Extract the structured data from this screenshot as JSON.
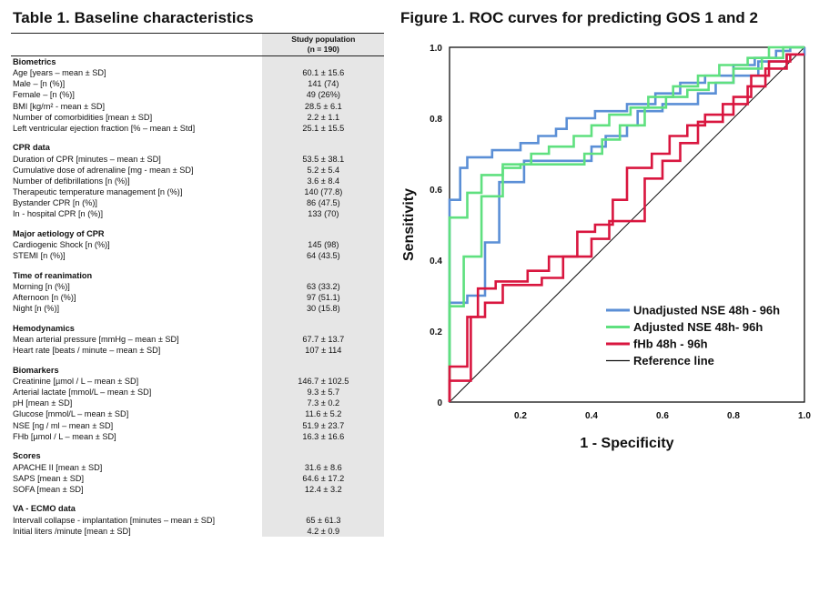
{
  "table": {
    "title": "Table 1. Baseline characteristics",
    "column_header_line1": "Study population",
    "column_header_line2": "(n = 190)",
    "sections": [
      {
        "heading": "Biometrics",
        "rows": [
          {
            "label": "Age [years – mean ± SD]",
            "value": "60.1 ± 15.6"
          },
          {
            "label": "Male – [n (%)]",
            "value": "141 (74)"
          },
          {
            "label": "Female – [n (%)]",
            "value": "49 (26%)"
          },
          {
            "label": "BMI [kg/m² - mean ± SD]",
            "value": "28.5 ± 6.1"
          },
          {
            "label": "Number of comorbidities [mean ± SD]",
            "value": "2.2 ± 1.1"
          },
          {
            "label": "Left ventricular ejection fraction [% – mean ± Std]",
            "value": "25.1 ± 15.5"
          }
        ]
      },
      {
        "heading": "CPR data",
        "rows": [
          {
            "label": "Duration of CPR [minutes – mean ± SD]",
            "value": "53.5 ± 38.1"
          },
          {
            "label": "Cumulative dose of adrenaline [mg - mean ± SD]",
            "value": "5.2 ± 5.4"
          },
          {
            "label": "Number of defibrillations [n (%)]",
            "value": "3.6 ± 8.4"
          },
          {
            "label": "Therapeutic temperature management [n (%)]",
            "value": "140 (77.8)"
          },
          {
            "label": "Bystander CPR [n (%)]",
            "value": "86 (47.5)"
          },
          {
            "label": "In - hospital CPR [n (%)]",
            "value": "133 (70)"
          }
        ]
      },
      {
        "heading": "Major aetiology of CPR",
        "rows": [
          {
            "label": "Cardiogenic Shock [n (%)]",
            "value": "145 (98)"
          },
          {
            "label": "STEMI [n (%)]",
            "value": "64 (43.5)"
          }
        ]
      },
      {
        "heading": "Time of reanimation",
        "rows": [
          {
            "label": "Morning [n (%)]",
            "value": "63 (33.2)"
          },
          {
            "label": "Afternoon [n (%)]",
            "value": "97 (51.1)"
          },
          {
            "label": "Night [n (%)]",
            "value": "30 (15.8)"
          }
        ]
      },
      {
        "heading": "Hemodynamics",
        "rows": [
          {
            "label": "Mean arterial pressure [mmHg – mean ± SD]",
            "value": "67.7 ± 13.7"
          },
          {
            "label": "Heart rate [beats / minute – mean ± SD]",
            "value": "107 ± 114"
          }
        ]
      },
      {
        "heading": "Biomarkers",
        "rows": [
          {
            "label": "Creatinine [µmol / L – mean ± SD]",
            "value": "146.7 ± 102.5"
          },
          {
            "label": "Arterial lactate [mmol/L – mean ± SD]",
            "value": "9.3 ± 5.7"
          },
          {
            "label": "pH [mean ± SD]",
            "value": "7.3 ± 0.2"
          },
          {
            "label": "Glucose [mmol/L – mean ± SD]",
            "value": "11.6 ± 5.2"
          },
          {
            "label": "NSE [ng / ml – mean ± SD]",
            "value": "51.9 ± 23.7"
          },
          {
            "label": "FHb [µmol / L – mean ± SD]",
            "value": "16.3 ± 16.6"
          }
        ]
      },
      {
        "heading": "Scores",
        "rows": [
          {
            "label": "APACHE II [mean ± SD]",
            "value": "31.6 ± 8.6"
          },
          {
            "label": "SAPS [mean ± SD]",
            "value": "64.6 ± 17.2"
          },
          {
            "label": "SOFA [mean ± SD]",
            "value": "12.4 ± 3.2"
          }
        ]
      },
      {
        "heading": "VA - ECMO data",
        "rows": [
          {
            "label": "Intervall collapse - implantation [minutes – mean ± SD]",
            "value": "65 ± 61.3"
          },
          {
            "label": "Initial liters /minute [mean ± SD]",
            "value": "4.2 ± 0.9"
          }
        ]
      }
    ]
  },
  "figure": {
    "title": "Figure 1. ROC curves for predicting GOS 1 and 2"
  },
  "chart_data": {
    "type": "line",
    "title": "Figure 1. ROC curves for predicting GOS 1 and 2",
    "xlabel": "1 - Specificity",
    "ylabel": "Sensitivity",
    "xlim": [
      0,
      1
    ],
    "ylim": [
      0,
      1
    ],
    "x_ticks": [
      "0.2",
      "0.4",
      "0.6",
      "0.8",
      "1.0"
    ],
    "y_ticks": [
      "0",
      "0.2",
      "0.4",
      "0.6",
      "0.8",
      "1.0"
    ],
    "grid": false,
    "legend_position": "bottom-right",
    "series": [
      {
        "name": "Unadjusted NSE 48h - 96h",
        "color": "#5b8fd6",
        "points": [
          [
            0,
            0
          ],
          [
            0,
            0.57
          ],
          [
            0.03,
            0.57
          ],
          [
            0.03,
            0.66
          ],
          [
            0.05,
            0.66
          ],
          [
            0.05,
            0.69
          ],
          [
            0.12,
            0.69
          ],
          [
            0.12,
            0.71
          ],
          [
            0.2,
            0.71
          ],
          [
            0.2,
            0.73
          ],
          [
            0.25,
            0.73
          ],
          [
            0.25,
            0.75
          ],
          [
            0.3,
            0.75
          ],
          [
            0.3,
            0.77
          ],
          [
            0.33,
            0.77
          ],
          [
            0.33,
            0.8
          ],
          [
            0.41,
            0.8
          ],
          [
            0.41,
            0.82
          ],
          [
            0.5,
            0.82
          ],
          [
            0.5,
            0.84
          ],
          [
            0.58,
            0.84
          ],
          [
            0.58,
            0.87
          ],
          [
            0.65,
            0.87
          ],
          [
            0.65,
            0.9
          ],
          [
            0.72,
            0.9
          ],
          [
            0.72,
            0.92
          ],
          [
            0.8,
            0.92
          ],
          [
            0.8,
            0.95
          ],
          [
            0.86,
            0.95
          ],
          [
            0.86,
            0.97
          ],
          [
            0.92,
            0.97
          ],
          [
            0.92,
            0.99
          ],
          [
            0.96,
            0.99
          ],
          [
            0.96,
            1
          ],
          [
            1,
            1
          ]
        ]
      },
      {
        "name": "Unadjusted NSE 48h - 96h",
        "color": "#5b8fd6",
        "points": [
          [
            0,
            0
          ],
          [
            0,
            0.28
          ],
          [
            0.05,
            0.28
          ],
          [
            0.05,
            0.3
          ],
          [
            0.1,
            0.3
          ],
          [
            0.1,
            0.45
          ],
          [
            0.14,
            0.45
          ],
          [
            0.14,
            0.62
          ],
          [
            0.21,
            0.62
          ],
          [
            0.21,
            0.68
          ],
          [
            0.4,
            0.68
          ],
          [
            0.4,
            0.72
          ],
          [
            0.44,
            0.72
          ],
          [
            0.44,
            0.75
          ],
          [
            0.5,
            0.75
          ],
          [
            0.5,
            0.78
          ],
          [
            0.53,
            0.78
          ],
          [
            0.53,
            0.82
          ],
          [
            0.6,
            0.82
          ],
          [
            0.6,
            0.84
          ],
          [
            0.7,
            0.84
          ],
          [
            0.7,
            0.87
          ],
          [
            0.75,
            0.87
          ],
          [
            0.75,
            0.9
          ],
          [
            0.8,
            0.9
          ],
          [
            0.8,
            0.92
          ],
          [
            0.87,
            0.92
          ],
          [
            0.87,
            0.96
          ],
          [
            0.95,
            0.96
          ],
          [
            0.95,
            0.98
          ],
          [
            1,
            0.98
          ],
          [
            1,
            1
          ]
        ]
      },
      {
        "name": "Adjusted NSE 48h- 96h",
        "color": "#5fe07f",
        "points": [
          [
            0,
            0
          ],
          [
            0,
            0.52
          ],
          [
            0.05,
            0.52
          ],
          [
            0.05,
            0.59
          ],
          [
            0.09,
            0.59
          ],
          [
            0.09,
            0.64
          ],
          [
            0.15,
            0.64
          ],
          [
            0.15,
            0.67
          ],
          [
            0.23,
            0.67
          ],
          [
            0.23,
            0.7
          ],
          [
            0.28,
            0.7
          ],
          [
            0.28,
            0.72
          ],
          [
            0.35,
            0.72
          ],
          [
            0.35,
            0.75
          ],
          [
            0.4,
            0.75
          ],
          [
            0.4,
            0.78
          ],
          [
            0.45,
            0.78
          ],
          [
            0.45,
            0.81
          ],
          [
            0.51,
            0.81
          ],
          [
            0.51,
            0.83
          ],
          [
            0.56,
            0.83
          ],
          [
            0.56,
            0.86
          ],
          [
            0.63,
            0.86
          ],
          [
            0.63,
            0.89
          ],
          [
            0.7,
            0.89
          ],
          [
            0.7,
            0.92
          ],
          [
            0.76,
            0.92
          ],
          [
            0.76,
            0.95
          ],
          [
            0.84,
            0.95
          ],
          [
            0.84,
            0.97
          ],
          [
            0.9,
            0.97
          ],
          [
            0.9,
            1
          ],
          [
            1,
            1
          ]
        ]
      },
      {
        "name": "Adjusted NSE 48h- 96h",
        "color": "#5fe07f",
        "points": [
          [
            0,
            0
          ],
          [
            0,
            0.27
          ],
          [
            0.04,
            0.27
          ],
          [
            0.04,
            0.41
          ],
          [
            0.09,
            0.41
          ],
          [
            0.09,
            0.58
          ],
          [
            0.15,
            0.58
          ],
          [
            0.15,
            0.66
          ],
          [
            0.2,
            0.66
          ],
          [
            0.2,
            0.67
          ],
          [
            0.38,
            0.67
          ],
          [
            0.38,
            0.7
          ],
          [
            0.43,
            0.7
          ],
          [
            0.43,
            0.74
          ],
          [
            0.48,
            0.74
          ],
          [
            0.48,
            0.78
          ],
          [
            0.55,
            0.78
          ],
          [
            0.55,
            0.83
          ],
          [
            0.61,
            0.83
          ],
          [
            0.61,
            0.86
          ],
          [
            0.67,
            0.86
          ],
          [
            0.67,
            0.88
          ],
          [
            0.73,
            0.88
          ],
          [
            0.73,
            0.9
          ],
          [
            0.8,
            0.9
          ],
          [
            0.8,
            0.94
          ],
          [
            0.88,
            0.94
          ],
          [
            0.88,
            0.97
          ],
          [
            0.94,
            0.97
          ],
          [
            0.94,
            1
          ],
          [
            1,
            1
          ]
        ]
      },
      {
        "name": "fHb 48h - 96h",
        "color": "#d9163f",
        "points": [
          [
            0,
            0
          ],
          [
            0,
            0.1
          ],
          [
            0.05,
            0.1
          ],
          [
            0.05,
            0.24
          ],
          [
            0.08,
            0.24
          ],
          [
            0.08,
            0.32
          ],
          [
            0.13,
            0.32
          ],
          [
            0.13,
            0.34
          ],
          [
            0.22,
            0.34
          ],
          [
            0.22,
            0.37
          ],
          [
            0.28,
            0.37
          ],
          [
            0.28,
            0.41
          ],
          [
            0.36,
            0.41
          ],
          [
            0.36,
            0.48
          ],
          [
            0.41,
            0.48
          ],
          [
            0.41,
            0.5
          ],
          [
            0.46,
            0.5
          ],
          [
            0.46,
            0.57
          ],
          [
            0.5,
            0.57
          ],
          [
            0.5,
            0.66
          ],
          [
            0.57,
            0.66
          ],
          [
            0.57,
            0.7
          ],
          [
            0.62,
            0.7
          ],
          [
            0.62,
            0.75
          ],
          [
            0.67,
            0.75
          ],
          [
            0.67,
            0.78
          ],
          [
            0.72,
            0.78
          ],
          [
            0.72,
            0.81
          ],
          [
            0.8,
            0.81
          ],
          [
            0.8,
            0.86
          ],
          [
            0.85,
            0.86
          ],
          [
            0.85,
            0.92
          ],
          [
            0.9,
            0.92
          ],
          [
            0.9,
            0.96
          ],
          [
            0.96,
            0.96
          ],
          [
            0.96,
            0.98
          ],
          [
            1,
            0.98
          ]
        ]
      },
      {
        "name": "fHb 48h - 96h",
        "color": "#d9163f",
        "points": [
          [
            0,
            0
          ],
          [
            0,
            0.06
          ],
          [
            0.06,
            0.06
          ],
          [
            0.06,
            0.24
          ],
          [
            0.1,
            0.24
          ],
          [
            0.1,
            0.28
          ],
          [
            0.15,
            0.28
          ],
          [
            0.15,
            0.33
          ],
          [
            0.26,
            0.33
          ],
          [
            0.26,
            0.35
          ],
          [
            0.32,
            0.35
          ],
          [
            0.32,
            0.41
          ],
          [
            0.4,
            0.41
          ],
          [
            0.4,
            0.46
          ],
          [
            0.45,
            0.46
          ],
          [
            0.45,
            0.51
          ],
          [
            0.55,
            0.51
          ],
          [
            0.55,
            0.63
          ],
          [
            0.6,
            0.63
          ],
          [
            0.6,
            0.68
          ],
          [
            0.65,
            0.68
          ],
          [
            0.65,
            0.73
          ],
          [
            0.7,
            0.73
          ],
          [
            0.7,
            0.79
          ],
          [
            0.77,
            0.79
          ],
          [
            0.77,
            0.84
          ],
          [
            0.84,
            0.84
          ],
          [
            0.84,
            0.89
          ],
          [
            0.89,
            0.89
          ],
          [
            0.89,
            0.94
          ],
          [
            0.95,
            0.94
          ],
          [
            0.95,
            0.98
          ],
          [
            1,
            0.98
          ]
        ]
      }
    ],
    "legend": [
      {
        "label": "Unadjusted NSE 48h - 96h",
        "color": "#5b8fd6"
      },
      {
        "label": "Adjusted NSE 48h- 96h",
        "color": "#5fe07f"
      },
      {
        "label": "fHb 48h - 96h",
        "color": "#d9163f"
      },
      {
        "label": "Reference line",
        "color": "#111111"
      }
    ]
  }
}
